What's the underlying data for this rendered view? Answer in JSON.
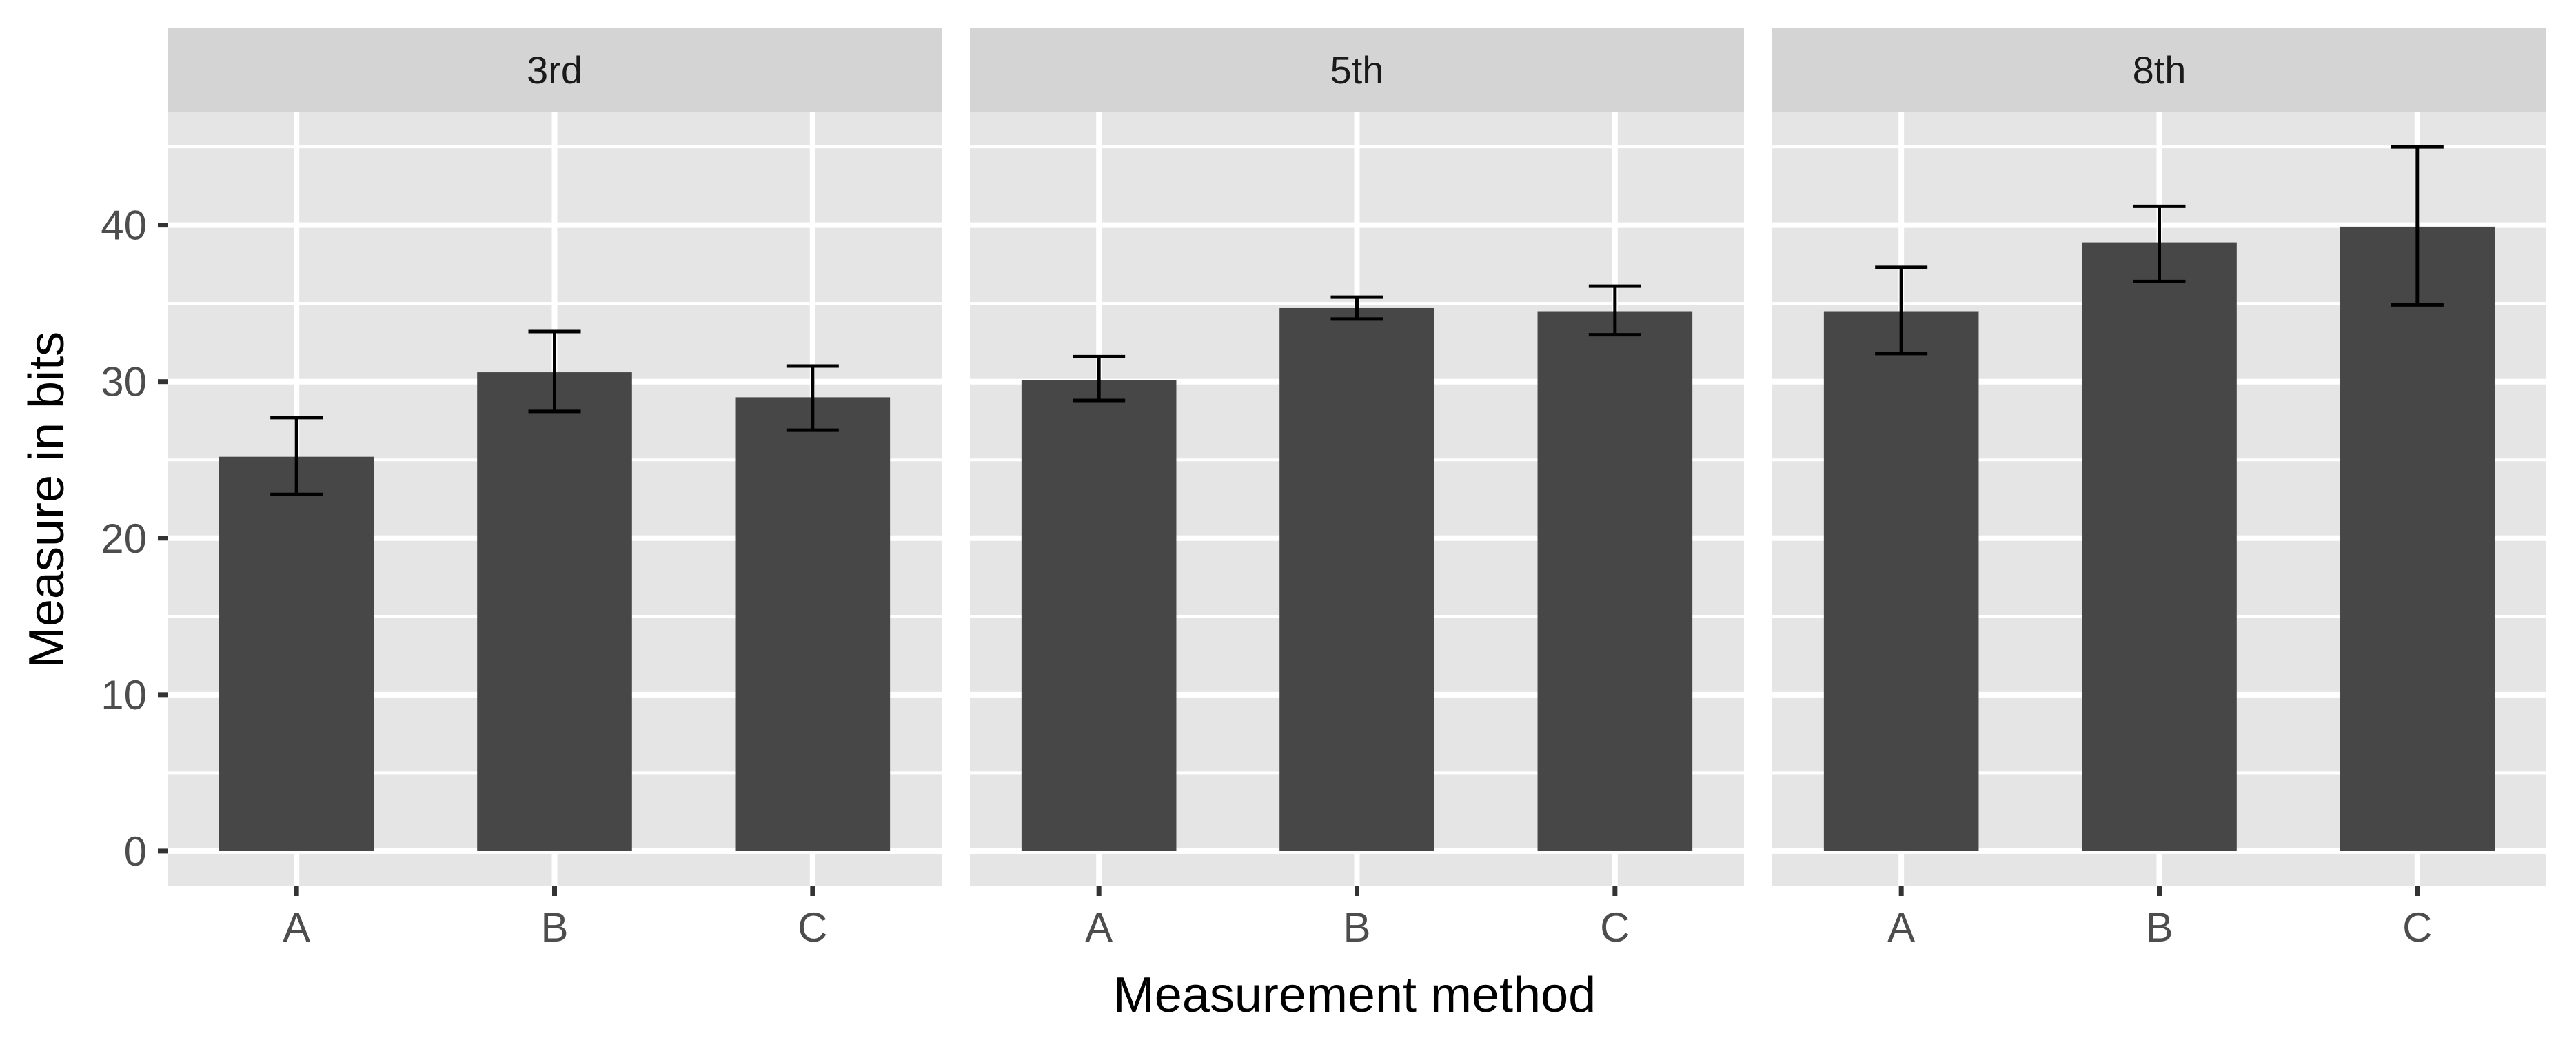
{
  "chart_data": {
    "type": "bar",
    "facets": [
      "3rd",
      "5th",
      "8th"
    ],
    "categories": [
      "A",
      "B",
      "C"
    ],
    "panels": [
      {
        "facet": "3rd",
        "values": [
          25.2,
          30.6,
          29.0
        ],
        "error_low": [
          22.8,
          28.1,
          26.9
        ],
        "error_high": [
          27.7,
          33.2,
          31.0
        ]
      },
      {
        "facet": "5th",
        "values": [
          30.1,
          34.7,
          34.5
        ],
        "error_low": [
          28.8,
          34.0,
          33.0
        ],
        "error_high": [
          31.6,
          35.4,
          36.1
        ]
      },
      {
        "facet": "8th",
        "values": [
          34.5,
          38.9,
          39.9
        ],
        "error_low": [
          31.8,
          36.4,
          34.9
        ],
        "error_high": [
          37.3,
          41.2,
          45.0
        ]
      }
    ],
    "xlabel": "Measurement method",
    "ylabel": "Measure in bits",
    "ylim": [
      -2.25,
      47.25
    ],
    "yticks": [
      0,
      10,
      20,
      30,
      40
    ],
    "grid": true,
    "legend": "none",
    "colors": {
      "bar": "#474747",
      "error_bar": "#000000",
      "panel_background": "#e5e5e5",
      "strip_background": "#d4d4d4",
      "gridline": "#ffffff"
    }
  }
}
